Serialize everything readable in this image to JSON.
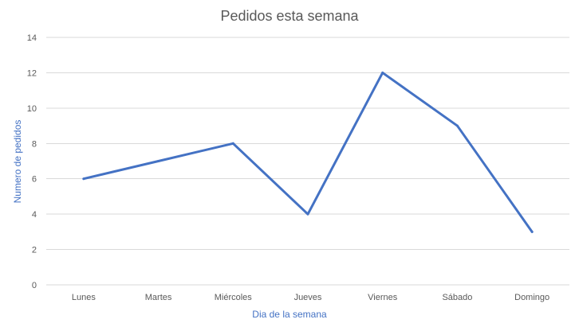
{
  "chart_data": {
    "type": "line",
    "title": "Pedidos esta semana",
    "xlabel": "Dia de la semana",
    "ylabel": "Numero de pedidos",
    "categories": [
      "Lunes",
      "Martes",
      "Miércoles",
      "Jueves",
      "Viernes",
      "Sábado",
      "Domingo"
    ],
    "series": [
      {
        "values": [
          6,
          7,
          8,
          4,
          12,
          9,
          3
        ],
        "color": "#4472c4"
      }
    ],
    "ylim": [
      0,
      14
    ],
    "yticks": [
      0,
      2,
      4,
      6,
      8,
      10,
      12,
      14
    ],
    "ytick_labels": [
      "0",
      "2",
      "4",
      "6",
      "8",
      "10",
      "12",
      "14"
    ],
    "grid": true,
    "legend": "none",
    "colors": {
      "series": "#4472c4",
      "axis_title": "#4472c4",
      "text": "#595959",
      "grid": "#d9d9d9"
    }
  }
}
